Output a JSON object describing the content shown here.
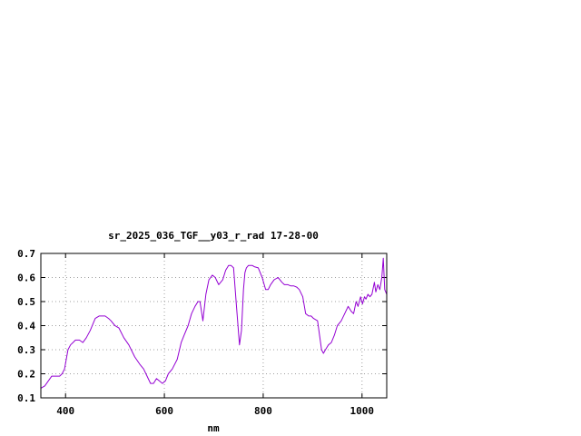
{
  "chart_data": {
    "type": "line",
    "title": "sr_2025_036_TGF__y03_r_rad 17-28-00",
    "xlabel": "nm",
    "ylabel": "",
    "xlim": [
      350,
      1050
    ],
    "ylim": [
      0.1,
      0.7
    ],
    "x_ticks": [
      400,
      600,
      800,
      1000
    ],
    "y_ticks": [
      0.1,
      0.2,
      0.3,
      0.4,
      0.5,
      0.6,
      0.7
    ],
    "x_tick_labels": [
      "400",
      "600",
      "800",
      "1000"
    ],
    "y_tick_labels": [
      "0.1",
      "0.2",
      "0.3",
      "0.4",
      "0.5",
      "0.6",
      "0.7"
    ],
    "grid": true,
    "legend": "none",
    "line_color": "#9400d3",
    "series": [
      {
        "name": "",
        "x": [
          350,
          358,
          365,
          372,
          380,
          388,
          393,
          398,
          405,
          410,
          415,
          420,
          428,
          435,
          442,
          450,
          460,
          468,
          475,
          480,
          487,
          492,
          500,
          508,
          518,
          528,
          540,
          550,
          558,
          565,
          572,
          578,
          584,
          590,
          596,
          602,
          608,
          616,
          626,
          634,
          640,
          648,
          655,
          662,
          668,
          672,
          678,
          684,
          690,
          697,
          703,
          710,
          718,
          724,
          730,
          735,
          740,
          746,
          752,
          756,
          760,
          763,
          766,
          770,
          774,
          778,
          782,
          790,
          798,
          805,
          810,
          815,
          822,
          830,
          838,
          843,
          850,
          856,
          862,
          868,
          873,
          880,
          886,
          892,
          897,
          902,
          910,
          918,
          922,
          926,
          932,
          938,
          944,
          950,
          958,
          965,
          972,
          978,
          983,
          988,
          992,
          997,
          1001,
          1005,
          1008,
          1012,
          1016,
          1020,
          1025,
          1028,
          1032,
          1036,
          1040,
          1043,
          1046,
          1050
        ],
        "values": [
          0.14,
          0.15,
          0.17,
          0.19,
          0.19,
          0.19,
          0.2,
          0.22,
          0.3,
          0.32,
          0.33,
          0.34,
          0.34,
          0.33,
          0.35,
          0.38,
          0.43,
          0.44,
          0.44,
          0.44,
          0.43,
          0.42,
          0.4,
          0.39,
          0.35,
          0.32,
          0.27,
          0.24,
          0.22,
          0.19,
          0.16,
          0.16,
          0.18,
          0.17,
          0.16,
          0.17,
          0.2,
          0.22,
          0.26,
          0.33,
          0.36,
          0.4,
          0.45,
          0.48,
          0.5,
          0.5,
          0.42,
          0.53,
          0.59,
          0.61,
          0.6,
          0.57,
          0.59,
          0.63,
          0.65,
          0.65,
          0.64,
          0.48,
          0.32,
          0.38,
          0.55,
          0.62,
          0.64,
          0.65,
          0.65,
          0.65,
          0.645,
          0.64,
          0.6,
          0.55,
          0.55,
          0.57,
          0.59,
          0.6,
          0.58,
          0.57,
          0.57,
          0.565,
          0.565,
          0.56,
          0.55,
          0.52,
          0.45,
          0.44,
          0.44,
          0.43,
          0.42,
          0.3,
          0.285,
          0.3,
          0.32,
          0.33,
          0.36,
          0.4,
          0.42,
          0.45,
          0.48,
          0.46,
          0.45,
          0.5,
          0.48,
          0.52,
          0.49,
          0.52,
          0.51,
          0.53,
          0.52,
          0.53,
          0.58,
          0.54,
          0.57,
          0.55,
          0.6,
          0.68,
          0.55,
          0.53
        ]
      }
    ]
  }
}
